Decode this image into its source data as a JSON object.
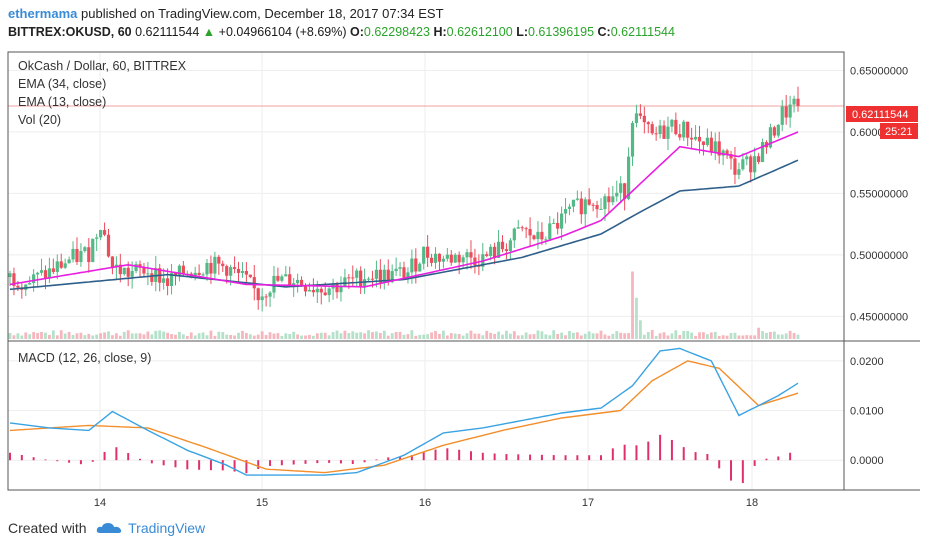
{
  "header": {
    "user": "ethermama",
    "published": "published on TradingView.com, December 18, 2017 07:34 EST",
    "symbol": "BITTREX:OKUSD, 60",
    "last": "0.62111544",
    "change_arrow": "▲",
    "change": "+0.04966104 (+8.69%)",
    "o_label": "O:",
    "o_value": "0.62298423",
    "h_label": "H:",
    "h_value": "0.62612100",
    "l_label": "L:",
    "l_value": "0.61396195",
    "c_label": "C:",
    "c_value": "0.62111544"
  },
  "legend": {
    "title": "OkCash / Dollar, 60, BITTREX",
    "ema34": "EMA (34, close)",
    "ema13": "EMA (13, close)",
    "vol": "Vol (20)",
    "macd": "MACD (12, 26, close, 9)"
  },
  "price_badge": "0.62111544",
  "time_badge": "25:21",
  "footer": {
    "created": "Created with",
    "brand": "TradingView"
  },
  "colors": {
    "up": "#53b987",
    "down": "#eb4d5c",
    "ema13": "#e91ee0",
    "ema34": "#2e5f8a",
    "macd": "#3aa3e3",
    "signal": "#f28e2b",
    "hist": "#e0306a",
    "badge_price": "#ee3030",
    "grid": "#eeeeee"
  },
  "chart_data": [
    {
      "type": "candlestick",
      "title": "OkCash / Dollar, 60, BITTREX",
      "x_ticks": [
        "14",
        "15",
        "16",
        "17",
        "18"
      ],
      "ylim": [
        0.43,
        0.665
      ],
      "y_ticks": [
        "0.45000000",
        "0.50000000",
        "0.55000000",
        "0.60000000",
        "0.65000000"
      ],
      "y_tick_values": [
        0.45,
        0.5,
        0.55,
        0.6,
        0.65
      ],
      "last_price": 0.62111544,
      "ohlc_knots": [
        [
          0,
          0.482
        ],
        [
          5,
          0.478
        ],
        [
          10,
          0.486
        ],
        [
          15,
          0.496
        ],
        [
          20,
          0.502
        ],
        [
          23,
          0.528
        ],
        [
          26,
          0.49
        ],
        [
          30,
          0.485
        ],
        [
          35,
          0.488
        ],
        [
          40,
          0.478
        ],
        [
          45,
          0.487
        ],
        [
          50,
          0.492
        ],
        [
          55,
          0.49
        ],
        [
          60,
          0.478
        ],
        [
          63,
          0.467
        ],
        [
          67,
          0.478
        ],
        [
          72,
          0.48
        ],
        [
          77,
          0.474
        ],
        [
          82,
          0.474
        ],
        [
          86,
          0.478
        ],
        [
          91,
          0.484
        ],
        [
          96,
          0.483
        ],
        [
          101,
          0.486
        ],
        [
          105,
          0.502
        ],
        [
          110,
          0.497
        ],
        [
          115,
          0.499
        ],
        [
          120,
          0.497
        ],
        [
          125,
          0.506
        ],
        [
          130,
          0.52
        ],
        [
          134,
          0.512
        ],
        [
          138,
          0.522
        ],
        [
          142,
          0.535
        ],
        [
          147,
          0.545
        ],
        [
          152,
          0.545
        ],
        [
          156,
          0.553
        ],
        [
          158,
          0.615
        ],
        [
          163,
          0.595
        ],
        [
          168,
          0.605
        ],
        [
          172,
          0.6
        ],
        [
          176,
          0.59
        ],
        [
          180,
          0.585
        ],
        [
          184,
          0.57
        ],
        [
          188,
          0.575
        ],
        [
          192,
          0.59
        ],
        [
          196,
          0.615
        ],
        [
          200,
          0.621
        ]
      ],
      "ema13_knots": [
        [
          0,
          0.476
        ],
        [
          30,
          0.492
        ],
        [
          60,
          0.476
        ],
        [
          90,
          0.474
        ],
        [
          120,
          0.495
        ],
        [
          140,
          0.515
        ],
        [
          150,
          0.528
        ],
        [
          158,
          0.552
        ],
        [
          170,
          0.588
        ],
        [
          185,
          0.58
        ],
        [
          200,
          0.6
        ]
      ],
      "ema34_knots": [
        [
          0,
          0.472
        ],
        [
          40,
          0.484
        ],
        [
          70,
          0.474
        ],
        [
          100,
          0.48
        ],
        [
          130,
          0.498
        ],
        [
          150,
          0.517
        ],
        [
          160,
          0.535
        ],
        [
          170,
          0.552
        ],
        [
          185,
          0.556
        ],
        [
          200,
          0.577
        ]
      ],
      "volume_spikes": [
        [
          158,
          0.9
        ],
        [
          159,
          0.55
        ],
        [
          160,
          0.25
        ],
        [
          163,
          0.12
        ],
        [
          190,
          0.15
        ]
      ]
    },
    {
      "type": "line",
      "title": "MACD (12, 26, close, 9)",
      "ylim": [
        -0.006,
        0.024
      ],
      "y_ticks": [
        "0.0000",
        "0.0100",
        "0.0200"
      ],
      "y_tick_values": [
        0.0,
        0.01,
        0.02
      ],
      "series": [
        {
          "name": "MACD",
          "knots": [
            [
              0,
              0.0075
            ],
            [
              10,
              0.0065
            ],
            [
              20,
              0.006
            ],
            [
              26,
              0.0098
            ],
            [
              35,
              0.006
            ],
            [
              45,
              0.002
            ],
            [
              55,
              -0.001
            ],
            [
              60,
              -0.003
            ],
            [
              70,
              -0.003
            ],
            [
              80,
              -0.003
            ],
            [
              88,
              -0.0025
            ],
            [
              100,
              0.001
            ],
            [
              110,
              0.0055
            ],
            [
              120,
              0.0065
            ],
            [
              130,
              0.008
            ],
            [
              140,
              0.0095
            ],
            [
              150,
              0.0105
            ],
            [
              158,
              0.015
            ],
            [
              165,
              0.022
            ],
            [
              170,
              0.0225
            ],
            [
              178,
              0.02
            ],
            [
              185,
              0.009
            ],
            [
              195,
              0.013
            ],
            [
              200,
              0.0155
            ]
          ]
        },
        {
          "name": "Signal",
          "knots": [
            [
              0,
              0.006
            ],
            [
              20,
              0.007
            ],
            [
              35,
              0.0065
            ],
            [
              50,
              0.0025
            ],
            [
              65,
              -0.0018
            ],
            [
              80,
              -0.0025
            ],
            [
              95,
              -0.001
            ],
            [
              110,
              0.003
            ],
            [
              125,
              0.006
            ],
            [
              140,
              0.0085
            ],
            [
              155,
              0.01
            ],
            [
              163,
              0.016
            ],
            [
              172,
              0.02
            ],
            [
              180,
              0.0185
            ],
            [
              190,
              0.011
            ],
            [
              200,
              0.0135
            ]
          ]
        }
      ],
      "histogram": "MACD - Signal"
    }
  ]
}
